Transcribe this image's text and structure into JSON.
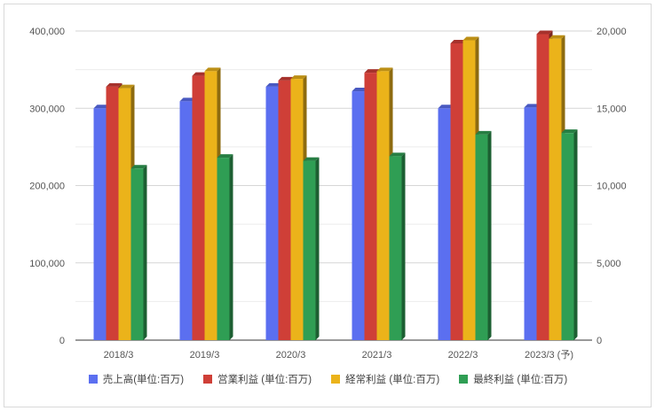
{
  "chart_data": {
    "type": "bar",
    "categories": [
      "2018/3",
      "2019/3",
      "2020/3",
      "2021/3",
      "2022/3",
      "2023/3 (予)"
    ],
    "left_axis": {
      "ylim": [
        0,
        400000
      ],
      "ticks": [
        "0",
        "100,000",
        "200,000",
        "300,000",
        "400,000"
      ]
    },
    "right_axis": {
      "ylim": [
        0,
        20000
      ],
      "ticks": [
        "0",
        "5,000",
        "10,000",
        "15,000",
        "20,000"
      ]
    },
    "grid": true,
    "legend_position": "bottom",
    "series": [
      {
        "name": "売上高(単位:百万)",
        "axis": "left",
        "color": "#5b6ff0",
        "values": [
          300000,
          309000,
          328000,
          322000,
          300000,
          301000
        ]
      },
      {
        "name": "営業利益 (単位:百万)",
        "axis": "right",
        "color": "#cf3f37",
        "values": [
          16400,
          17100,
          16800,
          17300,
          19200,
          19800
        ]
      },
      {
        "name": "経常利益 (単位:百万)",
        "axis": "right",
        "color": "#ebb31a",
        "values": [
          16300,
          17400,
          16900,
          17400,
          19400,
          19500
        ]
      },
      {
        "name": "最終利益 (単位:百万)",
        "axis": "right",
        "color": "#2f9e54",
        "values": [
          11100,
          11800,
          11600,
          11900,
          13300,
          13400
        ]
      }
    ]
  }
}
